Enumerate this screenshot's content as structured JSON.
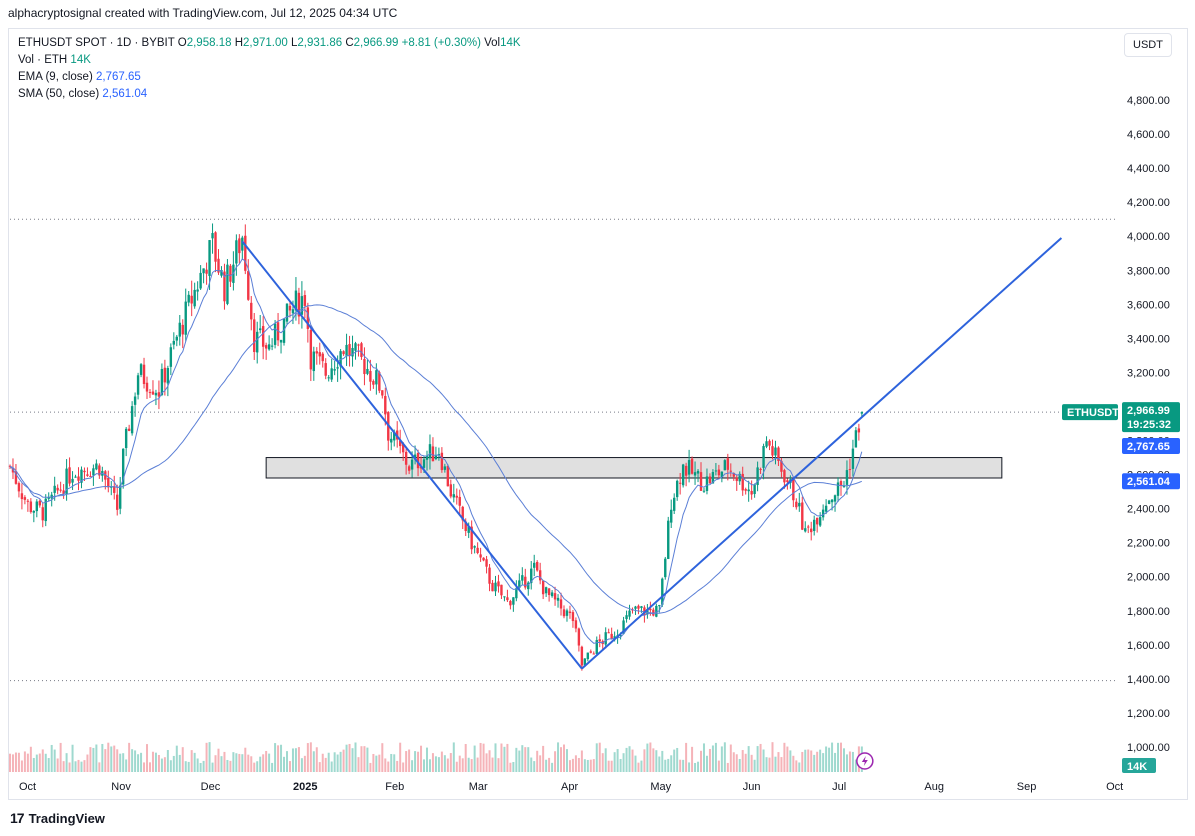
{
  "caption": "alphacryptosignal created with TradingView.com, Jul 12, 2025 04:34 UTC",
  "legend": {
    "symbol": "ETHUSDT SPOT · 1D · BYBIT",
    "o_label": "O",
    "o_val": "2,958.18",
    "h_label": "H",
    "h_val": "2,971.00",
    "l_label": "L",
    "l_val": "2,931.86",
    "c_label": "C",
    "c_val": "2,966.99",
    "change": "+8.81 (+0.30%)",
    "vol_label": "Vol",
    "vol_val": "14K",
    "vol_row_label": "Vol · ETH",
    "vol_row_val": "14K",
    "ema_label": "EMA (9, close)",
    "ema_val": "2,767.65",
    "sma_label": "SMA (50, close)",
    "sma_val": "2,561.04"
  },
  "currency": "USDT",
  "price_tags": {
    "symbol_tag": "ETHUSDT",
    "last_price": "2,966.99",
    "countdown": "19:25:32",
    "ema": "2,767.65",
    "sma": "2,561.04",
    "volume": "14K"
  },
  "footer": {
    "logo": "17",
    "brand": "TradingView"
  },
  "colors": {
    "up": "#089981",
    "down": "#f23645",
    "ma": "#2962ff",
    "ma_line": "#5b7fd6",
    "trend": "#2e63dc",
    "grid_dot": "#787b86"
  },
  "chart_data": {
    "type": "candlestick",
    "symbol": "ETHUSDT",
    "ylim": [
      900,
      5000
    ],
    "y_ticks": [
      1000,
      1200,
      1400,
      1600,
      1800,
      2000,
      2200,
      2400,
      2600,
      2800,
      3000,
      3200,
      3400,
      3600,
      3800,
      4000,
      4200,
      4400,
      4600,
      4800
    ],
    "y_tick_labels": [
      "1,000.00",
      "1,200.00",
      "1,400.00",
      "1,600.00",
      "1,800.00",
      "2,000.00",
      "2,200.00",
      "2,400.00",
      "2,600.00",
      "2,800.00",
      "3,000.00",
      "3,200.00",
      "3,400.00",
      "3,600.00",
      "3,800.00",
      "4,000.00",
      "4,200.00",
      "4,400.00",
      "4,600.00",
      "4,800.00"
    ],
    "x_labels": [
      {
        "label": "Oct",
        "date": "2024-10-01"
      },
      {
        "label": "Nov",
        "date": "2024-11-01"
      },
      {
        "label": "Dec",
        "date": "2024-12-01"
      },
      {
        "label": "2025",
        "date": "2025-01-01"
      },
      {
        "label": "Feb",
        "date": "2025-02-01"
      },
      {
        "label": "Mar",
        "date": "2025-03-01"
      },
      {
        "label": "Apr",
        "date": "2025-04-01"
      },
      {
        "label": "May",
        "date": "2025-05-01"
      },
      {
        "label": "Jun",
        "date": "2025-06-01"
      },
      {
        "label": "Jul",
        "date": "2025-07-01"
      },
      {
        "label": "Aug",
        "date": "2025-08-01"
      },
      {
        "label": "Sep",
        "date": "2025-09-01"
      },
      {
        "label": "Oct",
        "date": "2025-10-01"
      }
    ],
    "x_range": [
      "2024-09-29",
      "2025-10-06"
    ],
    "close_anchors": [
      [
        "2024-09-29",
        2650
      ],
      [
        "2024-10-05",
        2420
      ],
      [
        "2024-10-10",
        2380
      ],
      [
        "2024-10-20",
        2620
      ],
      [
        "2024-10-29",
        2650
      ],
      [
        "2024-11-04",
        2400
      ],
      [
        "2024-11-06",
        2700
      ],
      [
        "2024-11-11",
        3200
      ],
      [
        "2024-11-18",
        3100
      ],
      [
        "2024-11-25",
        3450
      ],
      [
        "2024-12-06",
        3950
      ],
      [
        "2024-12-10",
        3700
      ],
      [
        "2024-12-16",
        4000
      ],
      [
        "2024-12-20",
        3400
      ],
      [
        "2024-12-25",
        3350
      ],
      [
        "2025-01-03",
        3600
      ],
      [
        "2025-01-06",
        3650
      ],
      [
        "2025-01-08",
        3300
      ],
      [
        "2025-01-13",
        3200
      ],
      [
        "2025-01-19",
        3350
      ],
      [
        "2025-01-26",
        3250
      ],
      [
        "2025-02-01",
        3100
      ],
      [
        "2025-02-03",
        2850
      ],
      [
        "2025-02-10",
        2650
      ],
      [
        "2025-02-20",
        2750
      ],
      [
        "2025-02-24",
        2500
      ],
      [
        "2025-03-03",
        2200
      ],
      [
        "2025-03-10",
        1950
      ],
      [
        "2025-03-15",
        1850
      ],
      [
        "2025-03-24",
        2050
      ],
      [
        "2025-03-28",
        1900
      ],
      [
        "2025-04-06",
        1750
      ],
      [
        "2025-04-09",
        1480
      ],
      [
        "2025-04-14",
        1600
      ],
      [
        "2025-04-22",
        1700
      ],
      [
        "2025-04-26",
        1800
      ],
      [
        "2025-05-05",
        1800
      ],
      [
        "2025-05-09",
        2450
      ],
      [
        "2025-05-13",
        2650
      ],
      [
        "2025-05-20",
        2550
      ],
      [
        "2025-05-28",
        2650
      ],
      [
        "2025-06-05",
        2500
      ],
      [
        "2025-06-10",
        2800
      ],
      [
        "2025-06-16",
        2600
      ],
      [
        "2025-06-20",
        2450
      ],
      [
        "2025-06-23",
        2250
      ],
      [
        "2025-06-30",
        2450
      ],
      [
        "2025-07-06",
        2550
      ],
      [
        "2025-07-09",
        2750
      ],
      [
        "2025-07-12",
        2966.99
      ]
    ],
    "ohlc_last": {
      "date": "2025-07-12",
      "open": 2958.18,
      "high": 2971.0,
      "low": 2931.86,
      "close": 2966.99
    },
    "overlays": [
      {
        "name": "EMA (9, close)",
        "last": 2767.65
      },
      {
        "name": "SMA (50, close)",
        "last": 2561.04
      }
    ],
    "horizontal_lines": [
      4100,
      2966.99,
      1390
    ],
    "support_zone": {
      "from": "2024-12-24",
      "to": "2025-08-28",
      "low": 2580,
      "high": 2700
    },
    "trend_lines": [
      {
        "from": [
          "2024-12-16",
          3970
        ],
        "to": [
          "2025-04-09",
          1460
        ]
      },
      {
        "from": [
          "2025-04-09",
          1460
        ],
        "to": [
          "2025-09-17",
          3990
        ]
      }
    ]
  }
}
